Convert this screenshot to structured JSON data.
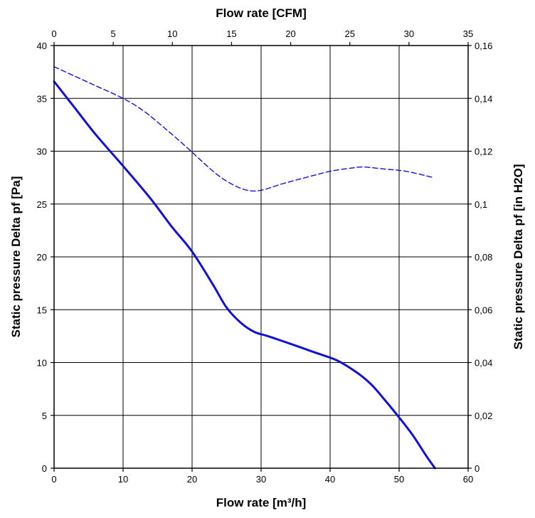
{
  "chart_data": {
    "type": "line",
    "title": "",
    "xlabel": "Flow rate [m³/h]",
    "x2label": "Flow rate [CFM]",
    "ylabel": "Static pressure Delta pf [Pa]",
    "y2label": "Static pressure Delta pf [in H2O]",
    "xlim": [
      0,
      60
    ],
    "x2lim": [
      0,
      35
    ],
    "ylim": [
      0,
      40
    ],
    "y2lim": [
      0,
      0.16
    ],
    "grid": true,
    "x_ticks": [
      "0",
      "10",
      "20",
      "30",
      "40",
      "50",
      "60"
    ],
    "x2_ticks": [
      "0",
      "5",
      "10",
      "15",
      "20",
      "25",
      "30",
      "35"
    ],
    "y_ticks": [
      "0",
      "5",
      "10",
      "15",
      "20",
      "25",
      "30",
      "35",
      "40"
    ],
    "y2_ticks": [
      "0",
      "0,02",
      "0,04",
      "0,06",
      "0,08",
      "0,1",
      "0,12",
      "0,14",
      "0,16"
    ],
    "series": [
      {
        "style": "solid",
        "color": "#1010d8",
        "points": [
          [
            0,
            36.6
          ],
          [
            3,
            34.1
          ],
          [
            6,
            31.6
          ],
          [
            10,
            28.6
          ],
          [
            14,
            25.5
          ],
          [
            17,
            22.9
          ],
          [
            20,
            20.5
          ],
          [
            23,
            17.4
          ],
          [
            25,
            15.2
          ],
          [
            27,
            13.8
          ],
          [
            29,
            12.9
          ],
          [
            31,
            12.5
          ],
          [
            35,
            11.6
          ],
          [
            38,
            10.9
          ],
          [
            41,
            10.2
          ],
          [
            44,
            9.0
          ],
          [
            46,
            7.9
          ],
          [
            48,
            6.4
          ],
          [
            50,
            4.8
          ],
          [
            52,
            3.1
          ],
          [
            54,
            1.1
          ],
          [
            55.2,
            0
          ]
        ]
      },
      {
        "style": "dashed",
        "color": "#1010d8",
        "points": [
          [
            0,
            38.0
          ],
          [
            3,
            37.1
          ],
          [
            6,
            36.2
          ],
          [
            10,
            35.0
          ],
          [
            13,
            33.8
          ],
          [
            16,
            32.2
          ],
          [
            19,
            30.5
          ],
          [
            22,
            28.7
          ],
          [
            24,
            27.6
          ],
          [
            26,
            26.8
          ],
          [
            28,
            26.3
          ],
          [
            30,
            26.3
          ],
          [
            33,
            26.9
          ],
          [
            37,
            27.6
          ],
          [
            40,
            28.1
          ],
          [
            43,
            28.4
          ],
          [
            45,
            28.5
          ],
          [
            48,
            28.3
          ],
          [
            51,
            28.1
          ],
          [
            55,
            27.5
          ]
        ]
      }
    ]
  }
}
